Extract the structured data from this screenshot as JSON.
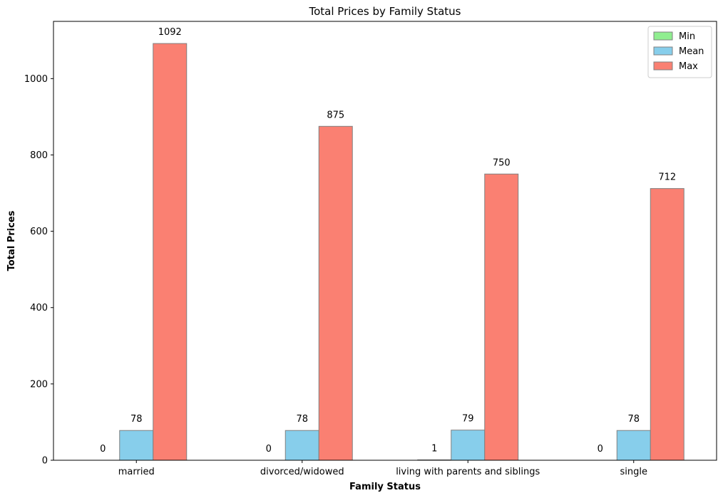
{
  "chart_data": {
    "type": "bar",
    "title": "Total Prices by Family Status",
    "xlabel": "Family Status",
    "ylabel": "Total Prices",
    "categories": [
      "married",
      "divorced/widowed",
      "living with parents and siblings",
      "single"
    ],
    "series": [
      {
        "name": "Min",
        "values": [
          0,
          0,
          1,
          0
        ],
        "labels": [
          "0",
          "0",
          "1",
          "0"
        ],
        "color": "#90ee90"
      },
      {
        "name": "Mean",
        "values": [
          78,
          78,
          79,
          78
        ],
        "labels": [
          "78",
          "78",
          "79",
          "78"
        ],
        "color": "#87ceeb"
      },
      {
        "name": "Max",
        "values": [
          1092,
          875,
          750,
          712
        ],
        "labels": [
          "1092",
          "875",
          "750",
          "712"
        ],
        "color": "#fa8072"
      }
    ],
    "ylim": [
      0,
      1150
    ],
    "yticks": [
      0,
      200,
      400,
      600,
      800,
      1000
    ],
    "ytick_labels": [
      "0",
      "200",
      "400",
      "600",
      "800",
      "1000"
    ],
    "legend_position": "top-right",
    "grid": false,
    "bar_edge_color": "#808080"
  }
}
